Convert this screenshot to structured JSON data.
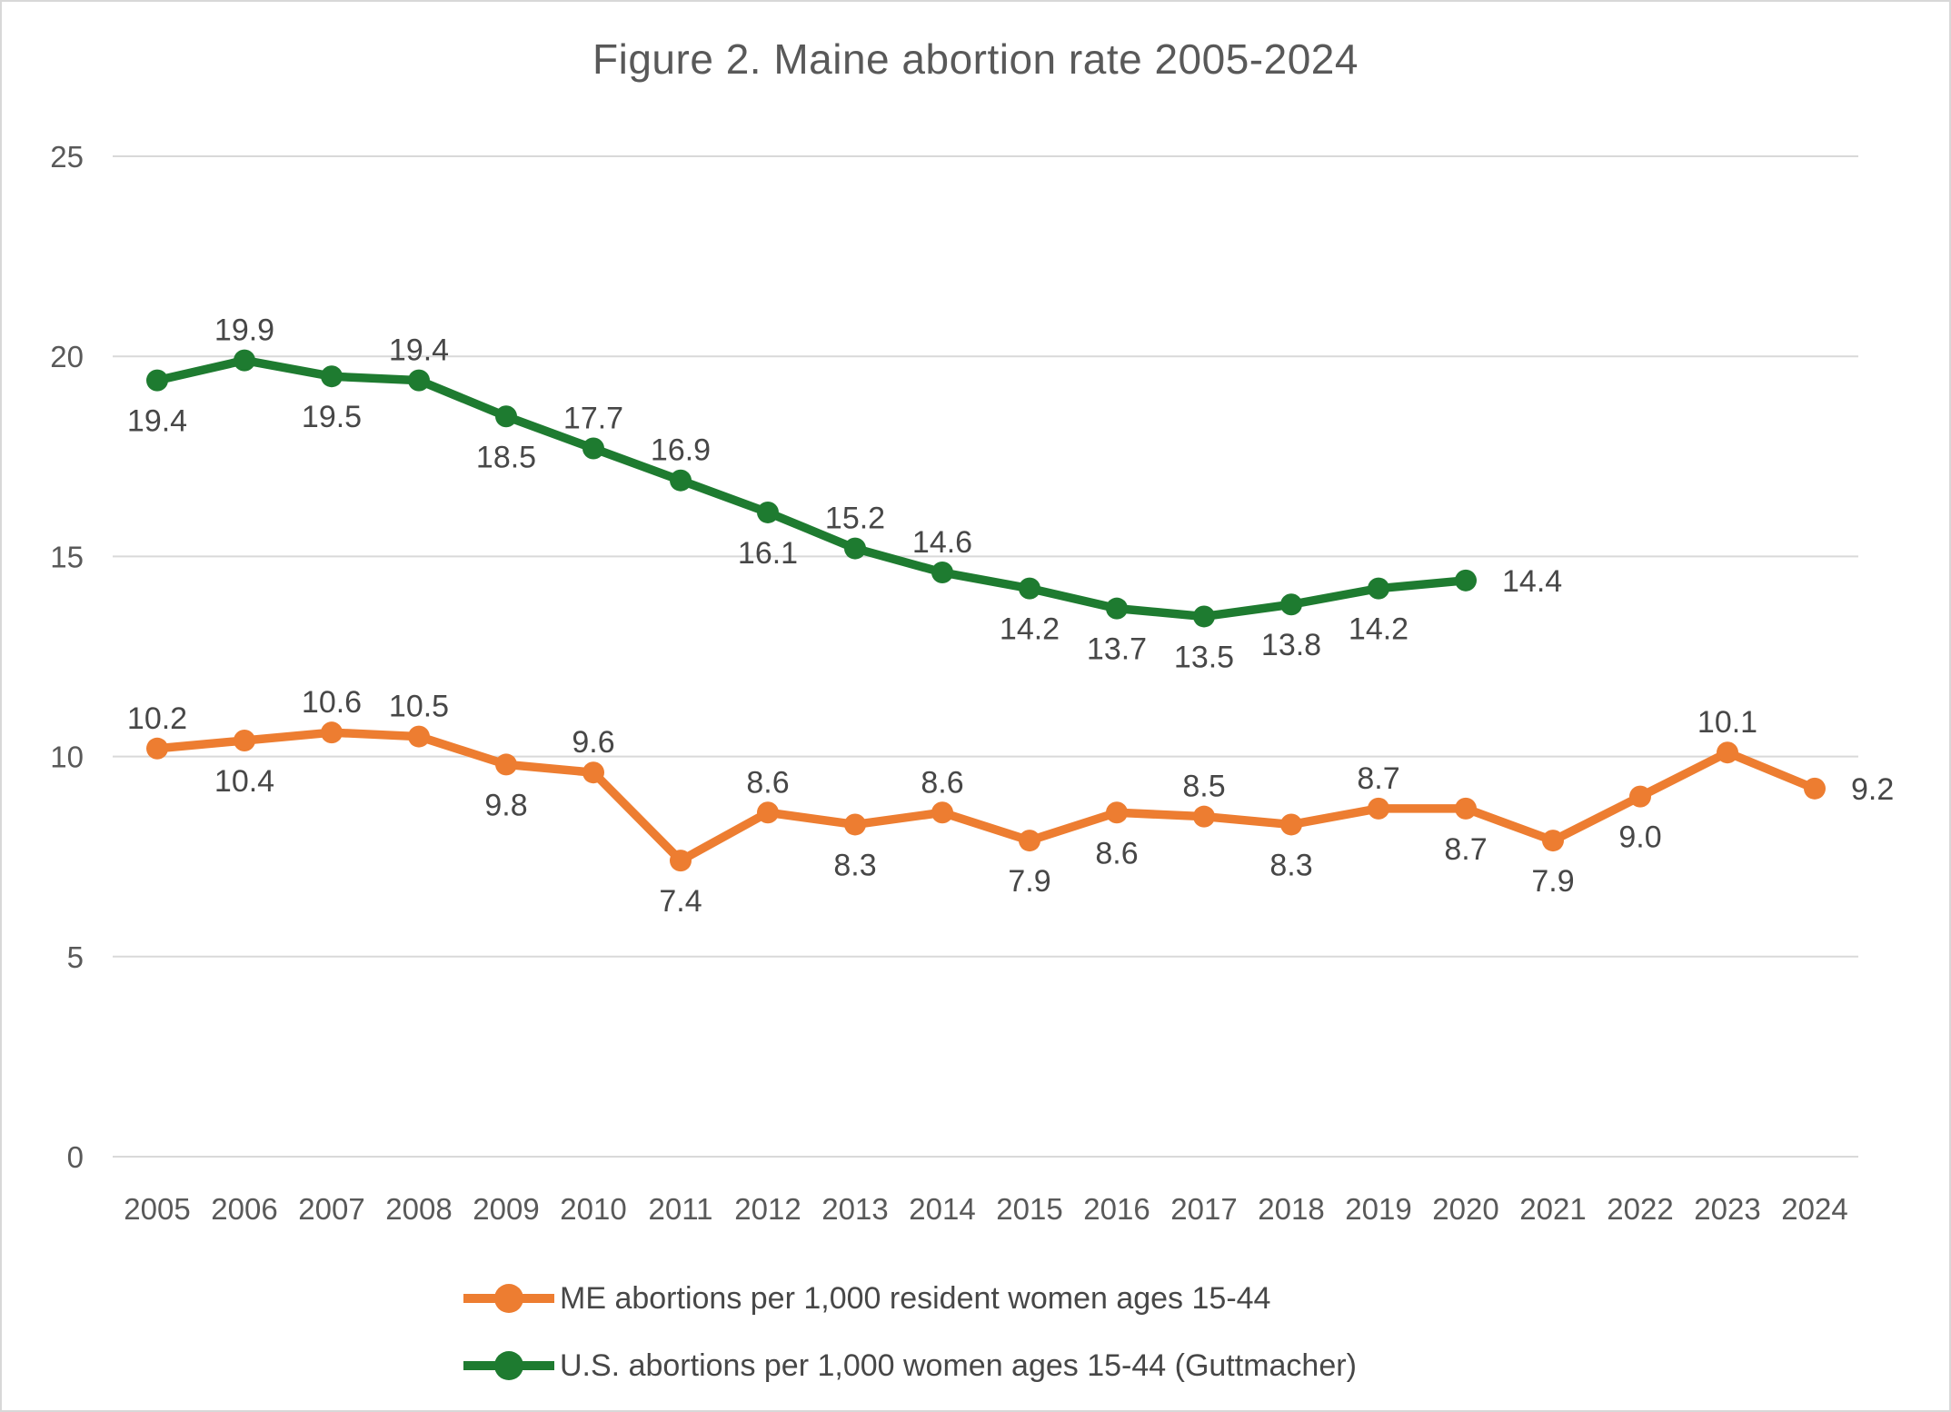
{
  "title": "Figure 2. Maine abortion rate 2005-2024",
  "colors": {
    "me_series": "#ED7D31",
    "us_series": "#1E7B30",
    "gridline": "#D9D9D9",
    "tick_label": "#595959",
    "data_label": "#474747",
    "title_text": "#595959",
    "page_border": "#D8D8D8",
    "background": "#FFFFFF"
  },
  "chart_data": {
    "type": "line",
    "title": "Figure 2. Maine abortion rate 2005-2024",
    "xlabel": "",
    "ylabel": "",
    "ylim": [
      0,
      25
    ],
    "yticks": [
      0,
      5,
      10,
      15,
      20,
      25
    ],
    "grid": true,
    "legend_position": "bottom",
    "categories": [
      "2005",
      "2006",
      "2007",
      "2008",
      "2009",
      "2010",
      "2011",
      "2012",
      "2013",
      "2014",
      "2015",
      "2016",
      "2017",
      "2018",
      "2019",
      "2020",
      "2021",
      "2022",
      "2023",
      "2024"
    ],
    "series": [
      {
        "name": "ME abortions per 1,000 resident women ages 15-44",
        "color": "#ED7D31",
        "values": [
          10.2,
          10.4,
          10.6,
          10.5,
          9.8,
          9.6,
          7.4,
          8.6,
          8.3,
          8.6,
          7.9,
          8.6,
          8.5,
          8.3,
          8.7,
          8.7,
          7.9,
          9.0,
          10.1,
          9.2
        ],
        "label_positions": [
          "above",
          "below",
          "above",
          "above",
          "below",
          "above",
          "below",
          "above",
          "below",
          "above",
          "below",
          "below",
          "above",
          "below",
          "above",
          "below",
          "below",
          "below",
          "above",
          "right"
        ]
      },
      {
        "name": "U.S. abortions per 1,000 women ages 15-44 (Guttmacher)",
        "color": "#1E7B30",
        "values": [
          19.4,
          19.9,
          19.5,
          19.4,
          18.5,
          17.7,
          16.9,
          16.1,
          15.2,
          14.6,
          14.2,
          13.7,
          13.5,
          13.8,
          14.2,
          14.4
        ],
        "label_positions": [
          "below",
          "above",
          "below",
          "above",
          "below",
          "above",
          "above",
          "below",
          "above",
          "above",
          "below",
          "below",
          "below",
          "below",
          "below",
          "right"
        ]
      }
    ]
  }
}
